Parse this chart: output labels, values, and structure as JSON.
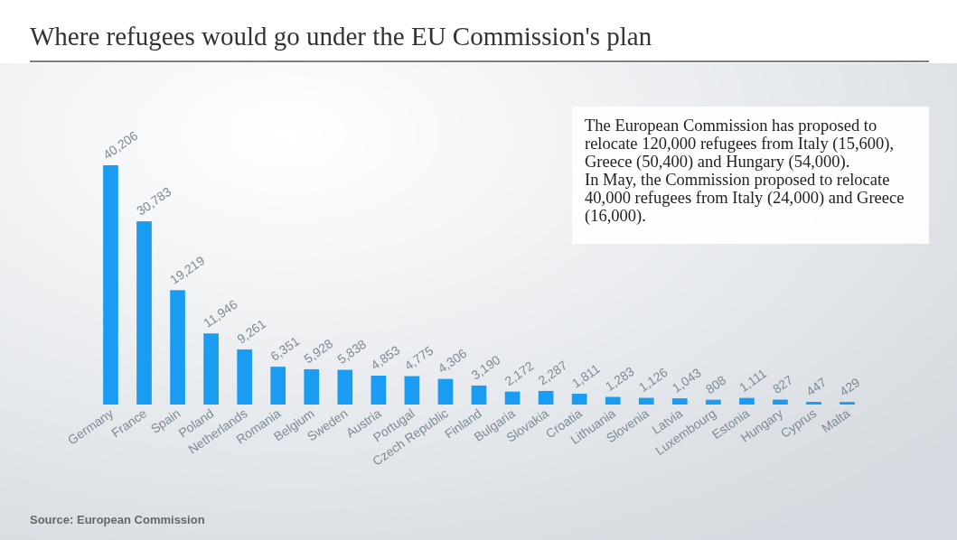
{
  "chart_data": {
    "type": "bar",
    "title": "Where refugees would go under the EU Commission's plan",
    "categories": [
      "Germany",
      "France",
      "Spain",
      "Poland",
      "Netherlands",
      "Romania",
      "Belgium",
      "Sweden",
      "Austria",
      "Portugal",
      "Czech Republic",
      "Finland",
      "Bulgaria",
      "Slovakia",
      "Croatia",
      "Lithuania",
      "Slovenia",
      "Latvia",
      "Luxembourg",
      "Estonia",
      "Hungary",
      "Cyprus",
      "Malta"
    ],
    "values": [
      40206,
      30783,
      19219,
      11946,
      9261,
      6351,
      5928,
      5838,
      4853,
      4775,
      4306,
      3190,
      2172,
      2287,
      1811,
      1283,
      1126,
      1043,
      808,
      1111,
      827,
      447,
      429
    ],
    "color": "#1a9cf2",
    "value_labels": [
      "40,206",
      "30,783",
      "19,219",
      "11,946",
      "9,261",
      "6,351",
      "5,928",
      "5,838",
      "4,853",
      "4,775",
      "4,306",
      "3,190",
      "2,172",
      "2,287",
      "1,811",
      "1,283",
      "1,126",
      "1,043",
      "808",
      "1,111",
      "827",
      "447",
      "429"
    ],
    "annotations": [
      "The European Commission has proposed to relocate 120,000 refugees from Italy (15,600), Greece (50,400) and Hungary (54,000).",
      "In May, the Commission proposed to relocate 40,000 refugees from Italy (24,000) and Greece (16,000).",
      "Source: European Commission"
    ]
  }
}
